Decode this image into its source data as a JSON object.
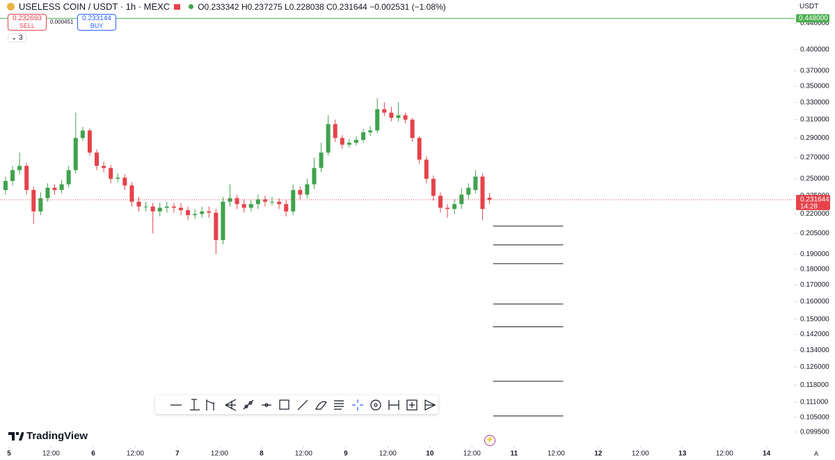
{
  "header": {
    "symbol": "USELESS COIN / USDT · 1h · MEXC",
    "ohlc": [
      "O",
      "0.233342",
      "H",
      "0.237275",
      "L",
      "0.228038",
      "C",
      "0.231644",
      "−0.002531 (−1.08%)"
    ],
    "currency": "USDT"
  },
  "trade": {
    "sell_price": "0.232693",
    "sell": "SELL",
    "spread": "0.000451",
    "buy_price": "0.233144",
    "buy": "BUY",
    "indicators": "3"
  },
  "branding": {
    "logo": "TradingView",
    "scale_mode": "A"
  },
  "chart_data": {
    "type": "candlestick",
    "log_scale": true,
    "grid": false,
    "up_color": "#3fa34d",
    "down_color": "#e5434b",
    "x": [
      -1,
      1,
      3,
      5,
      7,
      9,
      11,
      13,
      15,
      17,
      19,
      21,
      23,
      25,
      27,
      29,
      31,
      33,
      35,
      37,
      39,
      41,
      43,
      45,
      47,
      49,
      51,
      53,
      55,
      57,
      59,
      61,
      63,
      65,
      67,
      69,
      71,
      73,
      75,
      77,
      79,
      81,
      83,
      85,
      87,
      89,
      91,
      93,
      95,
      97,
      99,
      101,
      103,
      105,
      107,
      109,
      111,
      113,
      115,
      117,
      119,
      121,
      123,
      125,
      127,
      129,
      131,
      133,
      135,
      137
    ],
    "open": [
      0.24,
      0.248,
      0.258,
      0.262,
      0.24,
      0.222,
      0.233,
      0.242,
      0.24,
      0.245,
      0.258,
      0.29,
      0.298,
      0.275,
      0.262,
      0.26,
      0.25,
      0.251,
      0.244,
      0.23,
      0.226,
      0.226,
      0.222,
      0.225,
      0.226,
      0.225,
      0.223,
      0.219,
      0.22,
      0.222,
      0.221,
      0.2,
      0.23,
      0.233,
      0.228,
      0.225,
      0.228,
      0.232,
      0.23,
      0.23,
      0.228,
      0.222,
      0.24,
      0.236,
      0.245,
      0.26,
      0.275,
      0.305,
      0.29,
      0.283,
      0.285,
      0.288,
      0.296,
      0.298,
      0.322,
      0.318,
      0.312,
      0.315,
      0.31,
      0.29,
      0.268,
      0.25,
      0.235,
      0.225,
      0.224,
      0.228,
      0.236,
      0.24,
      0.252,
      0.233342
    ],
    "high": [
      0.252,
      0.262,
      0.275,
      0.265,
      0.243,
      0.238,
      0.246,
      0.245,
      0.249,
      0.262,
      0.318,
      0.302,
      0.3,
      0.278,
      0.266,
      0.263,
      0.255,
      0.254,
      0.247,
      0.234,
      0.23,
      0.229,
      0.229,
      0.23,
      0.229,
      0.229,
      0.226,
      0.224,
      0.226,
      0.226,
      0.224,
      0.234,
      0.245,
      0.236,
      0.232,
      0.232,
      0.236,
      0.235,
      0.234,
      0.233,
      0.232,
      0.245,
      0.243,
      0.25,
      0.27,
      0.285,
      0.315,
      0.31,
      0.293,
      0.289,
      0.292,
      0.3,
      0.303,
      0.335,
      0.33,
      0.325,
      0.33,
      0.318,
      0.312,
      0.292,
      0.271,
      0.253,
      0.238,
      0.228,
      0.232,
      0.242,
      0.246,
      0.258,
      0.255,
      0.237275
    ],
    "low": [
      0.236,
      0.244,
      0.254,
      0.236,
      0.212,
      0.219,
      0.23,
      0.236,
      0.237,
      0.242,
      0.255,
      0.287,
      0.272,
      0.258,
      0.256,
      0.246,
      0.247,
      0.24,
      0.226,
      0.222,
      0.222,
      0.205,
      0.218,
      0.221,
      0.221,
      0.219,
      0.215,
      0.216,
      0.217,
      0.217,
      0.19,
      0.197,
      0.226,
      0.224,
      0.221,
      0.222,
      0.224,
      0.226,
      0.227,
      0.224,
      0.218,
      0.219,
      0.232,
      0.233,
      0.241,
      0.256,
      0.272,
      0.286,
      0.279,
      0.28,
      0.282,
      0.285,
      0.292,
      0.295,
      0.314,
      0.308,
      0.308,
      0.306,
      0.286,
      0.264,
      0.246,
      0.231,
      0.221,
      0.217,
      0.22,
      0.224,
      0.232,
      0.237,
      0.215,
      0.228038
    ],
    "close": [
      0.248,
      0.258,
      0.262,
      0.24,
      0.222,
      0.233,
      0.242,
      0.24,
      0.245,
      0.258,
      0.29,
      0.298,
      0.275,
      0.262,
      0.26,
      0.25,
      0.251,
      0.244,
      0.23,
      0.226,
      0.226,
      0.222,
      0.225,
      0.226,
      0.225,
      0.223,
      0.219,
      0.22,
      0.222,
      0.221,
      0.2,
      0.23,
      0.233,
      0.228,
      0.225,
      0.228,
      0.232,
      0.23,
      0.23,
      0.228,
      0.222,
      0.24,
      0.236,
      0.245,
      0.26,
      0.275,
      0.305,
      0.29,
      0.283,
      0.285,
      0.288,
      0.296,
      0.298,
      0.322,
      0.318,
      0.312,
      0.315,
      0.31,
      0.29,
      0.268,
      0.25,
      0.235,
      0.225,
      0.224,
      0.228,
      0.236,
      0.242,
      0.252,
      0.224,
      0.231644
    ],
    "last_price_label": "0.231644",
    "countdown": "14:28",
    "alert_line": {
      "value": 0.448,
      "label": "0.448000",
      "color": "#4caf50"
    },
    "horizontal_segments": {
      "x_start": 138,
      "x_end": 158,
      "values": [
        0.2105,
        0.1966,
        0.1836,
        0.1585,
        0.1459,
        0.1197,
        0.1055
      ]
    },
    "xlim": [
      -2.58,
      223.6
    ],
    "ylim": [
      0.0948,
      0.479
    ],
    "xticks": [
      {
        "value": 0,
        "label": "5"
      },
      {
        "value": 12,
        "label": "12:00"
      },
      {
        "value": 24,
        "label": "6"
      },
      {
        "value": 36,
        "label": "12:00"
      },
      {
        "value": 48,
        "label": "7"
      },
      {
        "value": 60,
        "label": "12:00"
      },
      {
        "value": 72,
        "label": "8"
      },
      {
        "value": 84,
        "label": "12:00"
      },
      {
        "value": 96,
        "label": "9"
      },
      {
        "value": 108,
        "label": "12:00"
      },
      {
        "value": 120,
        "label": "10"
      },
      {
        "value": 132,
        "label": "12:00"
      },
      {
        "value": 144,
        "label": "11"
      },
      {
        "value": 156,
        "label": "12:00"
      },
      {
        "value": 168,
        "label": "12"
      },
      {
        "value": 180,
        "label": "12:00"
      },
      {
        "value": 192,
        "label": "13"
      },
      {
        "value": 204,
        "label": "12:00"
      },
      {
        "value": 216,
        "label": "14"
      }
    ],
    "yticks": [
      {
        "value": 0.0995,
        "label": "0.099500"
      },
      {
        "value": 0.105,
        "label": "0.105000"
      },
      {
        "value": 0.111,
        "label": "0.111000"
      },
      {
        "value": 0.118,
        "label": "0.118000"
      },
      {
        "value": 0.126,
        "label": "0.126000"
      },
      {
        "value": 0.134,
        "label": "0.134000"
      },
      {
        "value": 0.142,
        "label": "0.142000"
      },
      {
        "value": 0.15,
        "label": "0.150000"
      },
      {
        "value": 0.16,
        "label": "0.160000"
      },
      {
        "value": 0.17,
        "label": "0.170000"
      },
      {
        "value": 0.18,
        "label": "0.180000"
      },
      {
        "value": 0.19,
        "label": "0.190000"
      },
      {
        "value": 0.205,
        "label": "0.205000"
      },
      {
        "value": 0.22,
        "label": "0.220000"
      },
      {
        "value": 0.235,
        "label": "0.235000"
      },
      {
        "value": 0.25,
        "label": "0.250000"
      },
      {
        "value": 0.27,
        "label": "0.270000"
      },
      {
        "value": 0.29,
        "label": "0.290000"
      },
      {
        "value": 0.31,
        "label": "0.310000"
      },
      {
        "value": 0.33,
        "label": "0.330000"
      },
      {
        "value": 0.35,
        "label": "0.350000"
      },
      {
        "value": 0.37,
        "label": "0.370000"
      },
      {
        "value": 0.4,
        "label": "0.400000"
      },
      {
        "value": 0.44,
        "label": "0.440000"
      }
    ]
  }
}
